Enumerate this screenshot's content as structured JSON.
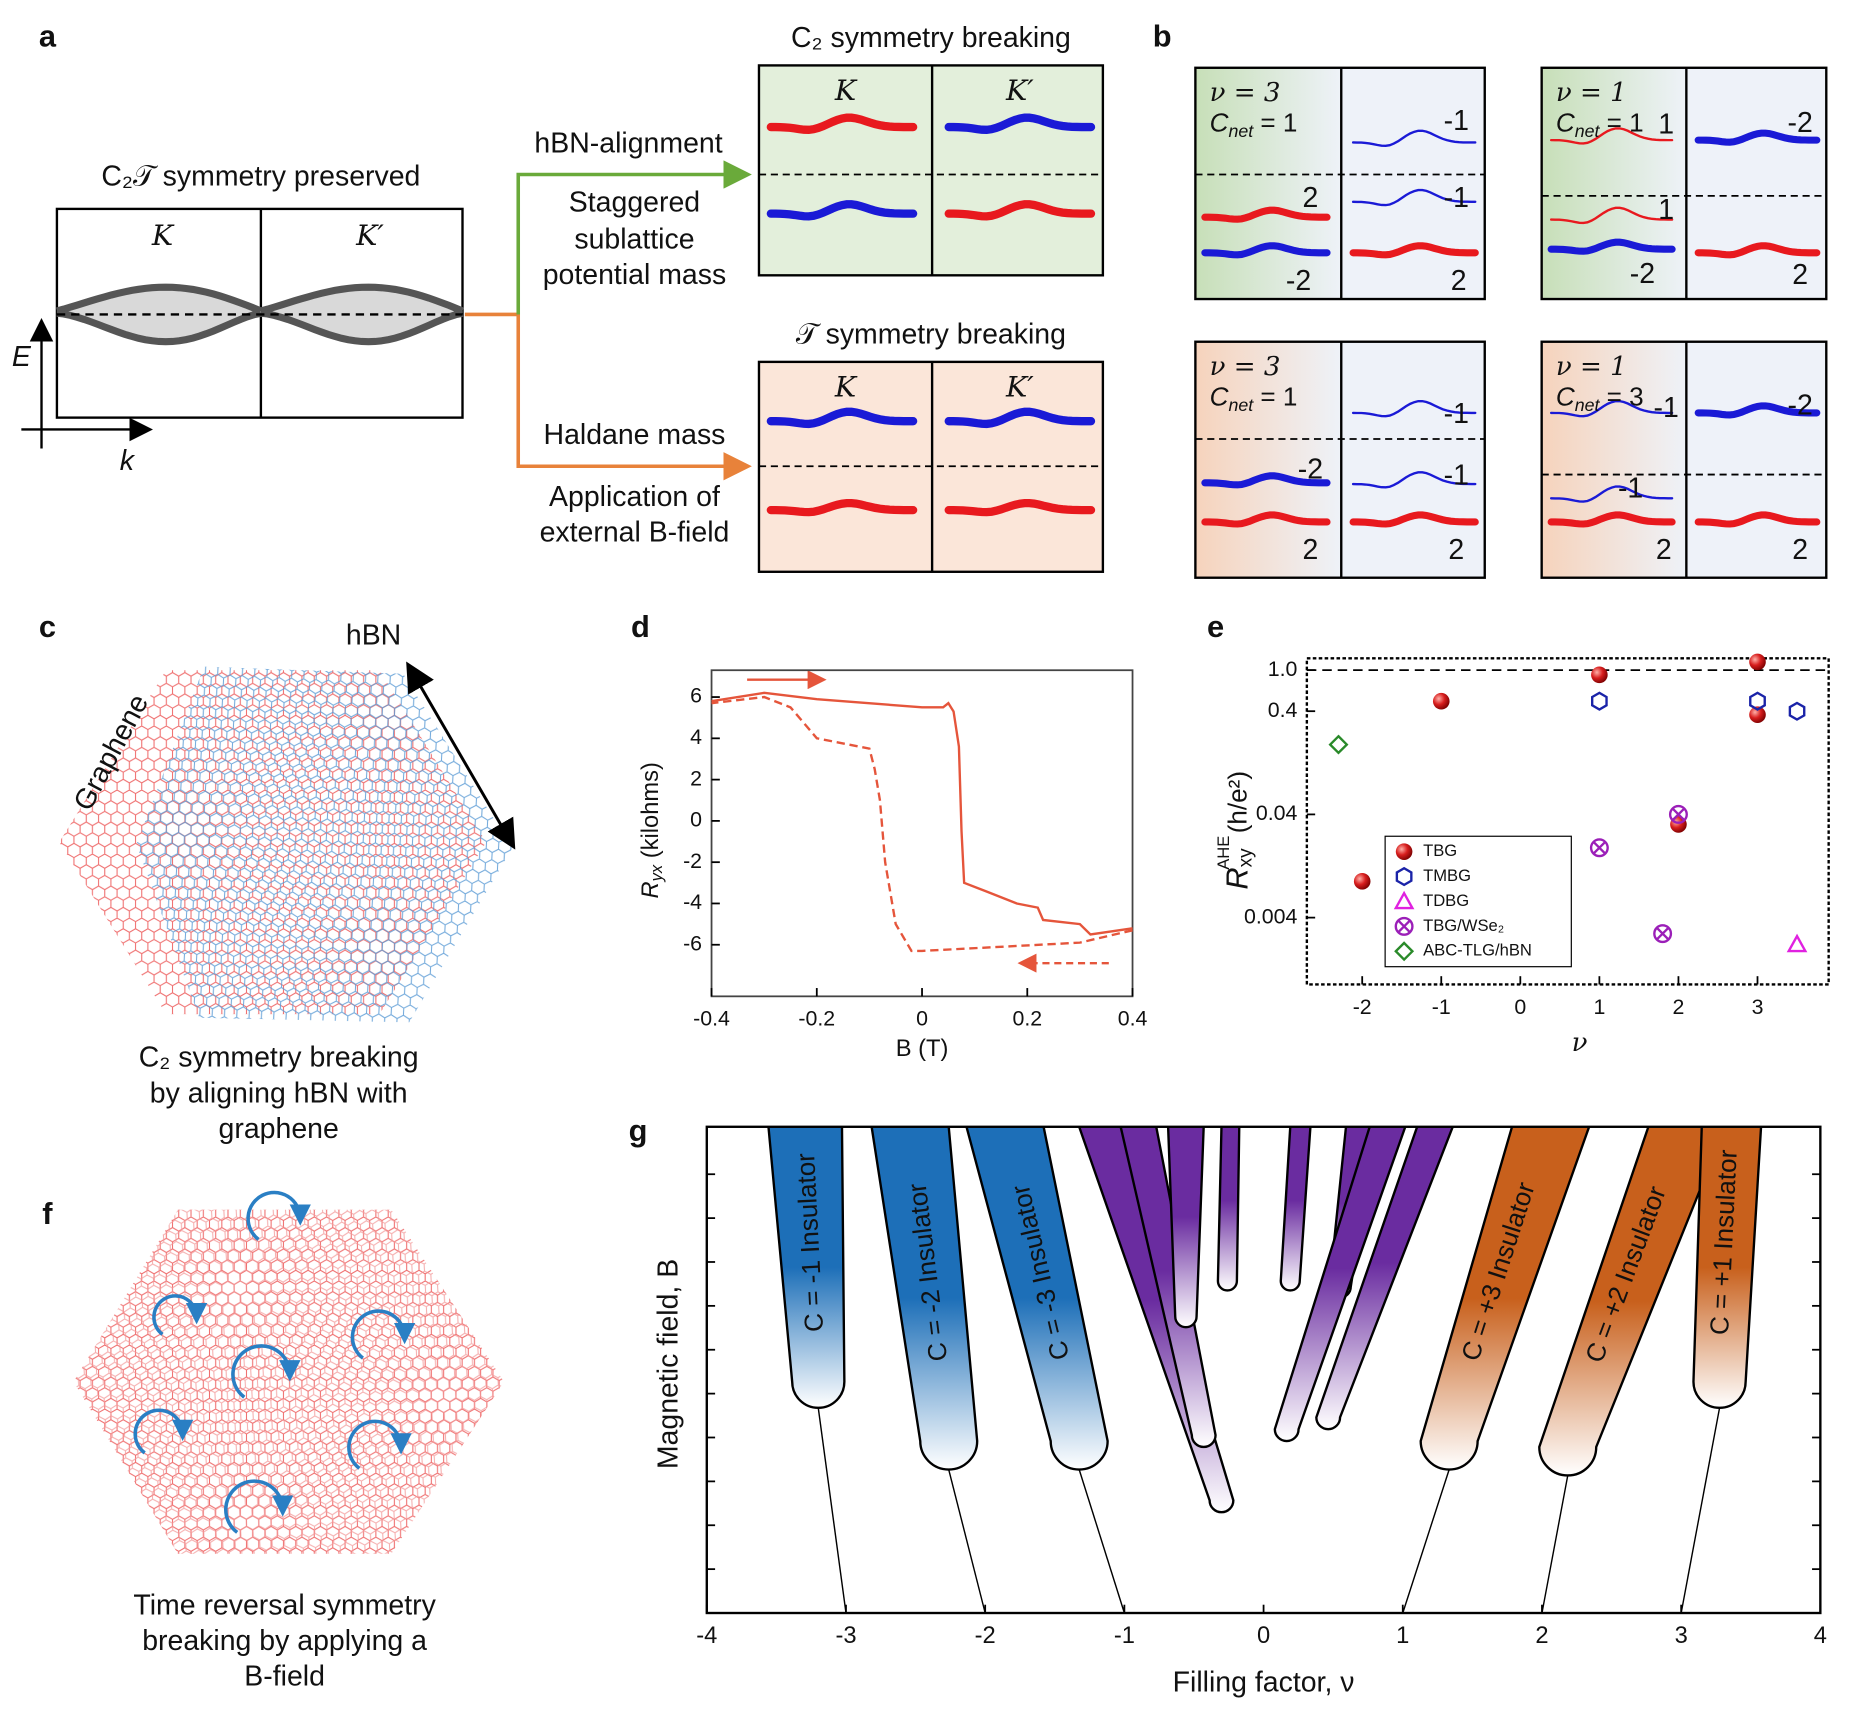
{
  "figure": {
    "panel_labels": [
      "a",
      "b",
      "c",
      "d",
      "e",
      "f",
      "g"
    ],
    "a": {
      "title": "C₂𝒯 symmetry preserved",
      "valleys": [
        "K",
        "K′"
      ],
      "e_axis": "E",
      "k_axis": "k",
      "upper_path": [
        "hBN-alignment",
        "Staggered",
        "sublattice",
        "potential mass"
      ],
      "lower_path": [
        "Haldane mass",
        "Application of",
        "external B-field"
      ],
      "c2_title": "C₂ symmetry breaking",
      "t_title": "𝒯 symmetry breaking"
    },
    "b": {
      "boxes": [
        {
          "nu": "ν = 3",
          "c": "C",
          "sub": "net",
          "eq": " = 1",
          "labels": [
            "2",
            "-2",
            "-1",
            "-1",
            "2"
          ]
        },
        {
          "nu": "ν = 1",
          "c": "C",
          "sub": "net",
          "eq": " = 1",
          "labels": [
            "1",
            "1",
            "-2",
            "-2",
            "2"
          ]
        },
        {
          "nu": "ν = 3",
          "c": "C",
          "sub": "net",
          "eq": " = 1",
          "labels": [
            "-2",
            "2",
            "-1",
            "-1",
            "2"
          ]
        },
        {
          "nu": "ν = 1",
          "c": "C",
          "sub": "net",
          "eq": " = 3",
          "labels": [
            "-1",
            "-1",
            "2",
            "-2",
            "2"
          ]
        }
      ]
    },
    "c": {
      "hbn": "hBN",
      "graphene": "Graphene",
      "caption": [
        "C₂ symmetry breaking",
        "by aligning hBN with",
        "graphene"
      ]
    },
    "f": {
      "caption": [
        "Time reversal symmetry",
        "breaking by applying a",
        "B-field"
      ]
    }
  },
  "chart_data": [
    {
      "type": "line",
      "xlabel": "B (T)",
      "ylabel": {
        "symbol": "R",
        "sub": "yx",
        "unit": " (kilohms)"
      },
      "xlim": [
        -0.4,
        0.4
      ],
      "ylim": [
        -8.5,
        7.3
      ],
      "xticks": [
        -0.4,
        -0.2,
        0,
        0.2,
        0.4
      ],
      "yticks": [
        -6,
        -4,
        -2,
        0,
        2,
        4,
        6
      ],
      "series": [
        {
          "color": "#e5553b",
          "dashed": false,
          "x": [
            -0.4,
            -0.3,
            -0.2,
            0,
            0.04,
            0.05,
            0.06,
            0.07,
            0.075,
            0.08,
            0.12,
            0.18,
            0.22,
            0.23,
            0.3,
            0.32,
            0.4
          ],
          "values": [
            5.8,
            6.2,
            5.9,
            5.5,
            5.5,
            5.7,
            5.3,
            3.6,
            -0.5,
            -3.0,
            -3.4,
            -4.0,
            -4.2,
            -4.8,
            -5.0,
            -5.5,
            -5.2
          ]
        },
        {
          "color": "#e5553b",
          "dashed": true,
          "x": [
            0.4,
            0.3,
            0,
            -0.02,
            -0.05,
            -0.07,
            -0.08,
            -0.09,
            -0.1,
            -0.2,
            -0.25,
            -0.3,
            -0.4
          ],
          "values": [
            -5.3,
            -5.9,
            -6.3,
            -6.3,
            -5.0,
            -2.0,
            1.0,
            2.5,
            3.5,
            4.0,
            5.5,
            6.0,
            5.7
          ]
        }
      ]
    },
    {
      "type": "scatter",
      "xlabel": "ν",
      "ylabel": {
        "symbol": "R",
        "sub": "xy",
        "sup": "AHE",
        "unit": "(h/e²)"
      },
      "yscale": "log",
      "xlim": [
        -2.7,
        3.9
      ],
      "ylim": [
        0.0009,
        1.3
      ],
      "xticks": [
        -2,
        -1,
        0,
        1,
        2,
        3
      ],
      "yticks": [
        0.004,
        0.04,
        0.4,
        {
          "value": 1,
          "label": "1.0"
        }
      ],
      "reference_line": 1,
      "series": [
        {
          "name": "TBG",
          "color": "#d81e1e",
          "marker": "sphere",
          "x": [
            -2,
            -1,
            1,
            2,
            3,
            3
          ],
          "values": [
            0.009,
            0.5,
            0.9,
            0.032,
            1.2,
            0.37
          ]
        },
        {
          "name": "TMBG",
          "color": "#1a23a8",
          "marker": "hexagon",
          "x": [
            1,
            3,
            3.5
          ],
          "values": [
            0.5,
            0.5,
            0.4
          ]
        },
        {
          "name": "TDBG",
          "color": "#e021e0",
          "marker": "triangle",
          "x": [
            3.5
          ],
          "values": [
            0.0022
          ]
        },
        {
          "name": "TBG/WSe₂",
          "color": "#9b1fb8",
          "marker": "crossed-circle",
          "x": [
            1,
            2,
            1.8
          ],
          "values": [
            0.019,
            0.04,
            0.0028
          ]
        },
        {
          "name": "ABC-TLG/hBN",
          "color": "#2a8a2a",
          "marker": "diamond",
          "x": [
            -2.3
          ],
          "values": [
            0.19
          ]
        }
      ]
    },
    {
      "type": "schematic",
      "xlabel": "Filling factor, ν",
      "ylabel": "Magnetic field, B",
      "xlim": [
        -4,
        4
      ],
      "xticks": [
        -4,
        -3,
        -2,
        -1,
        0,
        1,
        2,
        3,
        4
      ],
      "annotations": [
        "C = -1 Insulator",
        "C = -2 Insulator",
        "C = -3 Insulator",
        "C = +3 Insulator",
        "C = +2 Insulator",
        "C = +1 Insulator"
      ]
    }
  ]
}
